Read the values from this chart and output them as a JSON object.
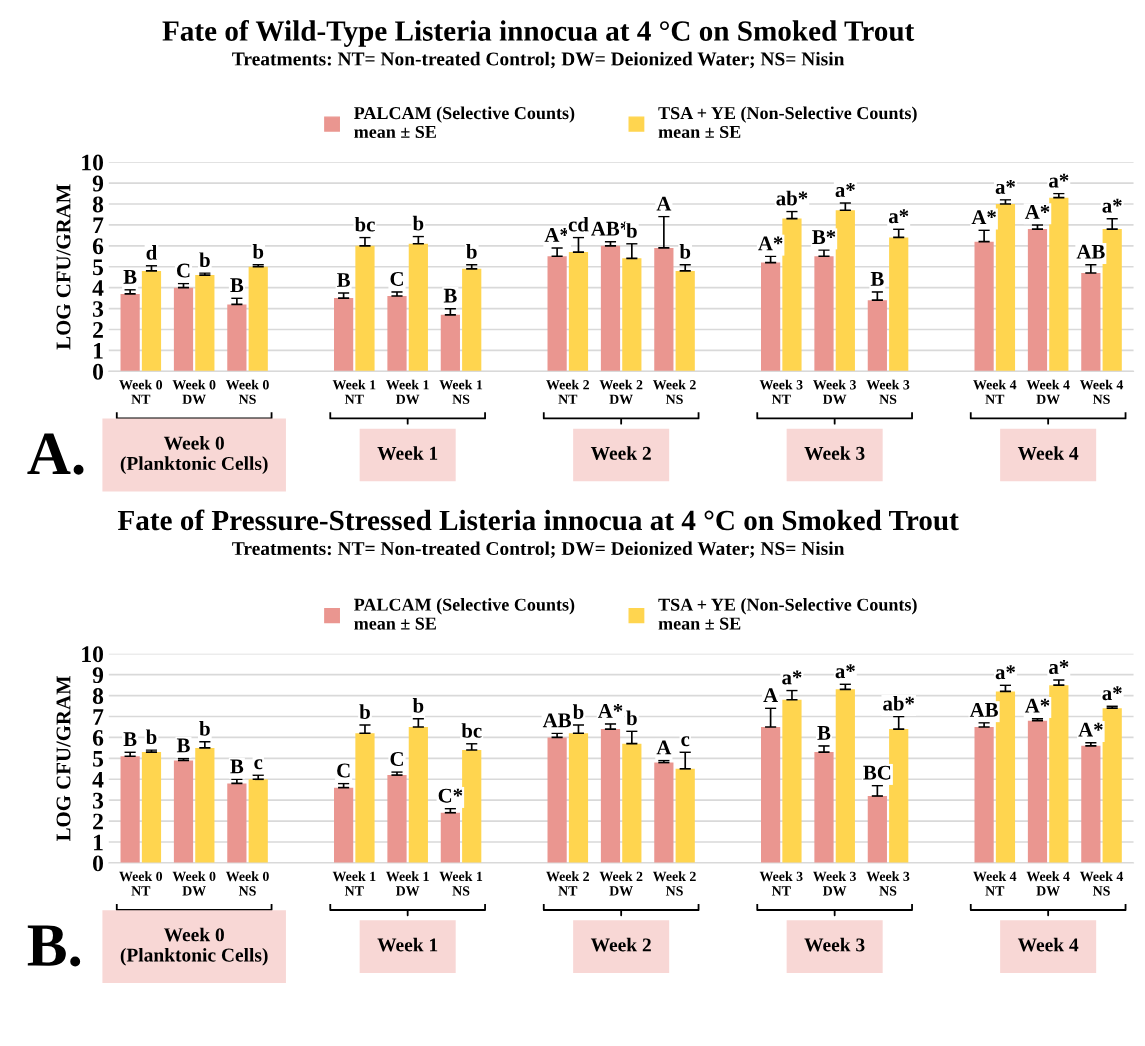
{
  "chart_data": [
    {
      "type": "bar",
      "title": "Fate of Wild-Type Listeria innocua at 4 °C on Smoked Trout",
      "subtitle": "Treatments: NT= Non-treated Control; DW= Deionized Water; NS= Nisin",
      "ylabel": "LOG CFU/GRAM",
      "categories": [
        "Week 0\nNT",
        "Week 0\nDW",
        "Week 0\nNS",
        null,
        "Week 1\nNT",
        "Week 1\nDW",
        "Week 1\nNS",
        null,
        "Week 2\nNT",
        "Week 2\nDW",
        "Week 2\nNS",
        null,
        "Week 3\nNT",
        "Week 3\nDW",
        "Week 3\nNS",
        null,
        "Week 4\nNT",
        "Week 4\nDW",
        "Week 4\nNS"
      ],
      "series": [
        {
          "name": "PALCAM (Selective Counts)\nmean ± SE",
          "color": "#ea9690",
          "values": [
            3.7,
            4.0,
            3.2,
            null,
            3.5,
            3.6,
            2.7,
            null,
            5.5,
            6.0,
            5.9,
            null,
            5.2,
            5.5,
            3.4,
            null,
            6.2,
            6.8,
            4.7
          ],
          "errors": [
            0.2,
            0.2,
            0.3,
            null,
            0.25,
            0.2,
            0.3,
            null,
            0.4,
            0.2,
            1.5,
            null,
            0.3,
            0.3,
            0.4,
            null,
            0.55,
            0.2,
            0.4
          ],
          "value_labels": [
            "B",
            "C",
            "B",
            null,
            "B",
            "C",
            "B",
            null,
            "A*",
            "AB*",
            "A",
            null,
            "A*",
            "B*",
            "B",
            null,
            "A*",
            "A*",
            "AB"
          ]
        },
        {
          "name": "TSA + YE (Non-Selective Counts)\nmean ± SE",
          "color": "#ffd54f",
          "values": [
            4.8,
            4.6,
            5.0,
            null,
            6.0,
            6.1,
            4.9,
            null,
            5.7,
            5.4,
            4.8,
            null,
            7.3,
            7.7,
            6.4,
            null,
            8.0,
            8.3,
            6.8
          ],
          "errors": [
            0.25,
            0.1,
            0.1,
            null,
            0.4,
            0.35,
            0.2,
            null,
            0.7,
            0.7,
            0.3,
            null,
            0.35,
            0.35,
            0.4,
            null,
            0.2,
            0.2,
            0.5
          ],
          "value_labels": [
            "d",
            "b",
            "b",
            null,
            "bc",
            "b",
            "b",
            null,
            "cd",
            "b",
            "b",
            null,
            "ab*",
            "a*",
            "a*",
            null,
            "a*",
            "a*",
            "a*"
          ]
        }
      ],
      "ylim": [
        0,
        10
      ],
      "yticks": [
        0,
        1,
        2,
        3,
        4,
        5,
        6,
        7,
        8,
        9,
        10
      ],
      "grid": "y",
      "legend": "top",
      "annotations": [
        "A.",
        "Week 0\n(Planktonic Cells)",
        "Week 1",
        "Week 2",
        "Week 3",
        "Week 4"
      ]
    },
    {
      "type": "bar",
      "title": "Fate of Pressure-Stressed Listeria innocua at 4 °C on Smoked Trout",
      "subtitle": "Treatments: NT= Non-treated Control; DW= Deionized Water; NS= Nisin",
      "ylabel": "LOG CFU/GRAM",
      "categories": [
        "Week 0\nNT",
        "Week 0\nDW",
        "Week 0\nNS",
        null,
        "Week 1\nNT",
        "Week 1\nDW",
        "Week 1\nNS",
        null,
        "Week 2\nNT",
        "Week 2\nDW",
        "Week 2\nNS",
        null,
        "Week 3\nNT",
        "Week 3\nDW",
        "Week 3\nNS",
        null,
        "Week 4\nNT",
        "Week 4\nDW",
        "Week 4\nNS"
      ],
      "series": [
        {
          "name": "PALCAM (Selective Counts)\nmean ± SE",
          "color": "#ea9690",
          "values": [
            5.1,
            4.9,
            3.8,
            null,
            3.6,
            4.2,
            2.4,
            null,
            6.0,
            6.4,
            4.8,
            null,
            6.5,
            5.3,
            3.2,
            null,
            6.5,
            6.8,
            5.6
          ],
          "errors": [
            0.2,
            0.1,
            0.2,
            null,
            0.2,
            0.15,
            0.2,
            null,
            0.2,
            0.25,
            0.1,
            null,
            0.9,
            0.3,
            0.5,
            null,
            0.2,
            0.1,
            0.15
          ],
          "value_labels": [
            "B",
            "B",
            "B",
            null,
            "C",
            "C",
            "C*",
            null,
            "AB",
            "A*",
            "A",
            null,
            "A",
            "B",
            "BC",
            null,
            "AB",
            "A*",
            "A*"
          ]
        },
        {
          "name": "TSA + YE (Non-Selective Counts)\nmean ± SE",
          "color": "#ffd54f",
          "values": [
            5.3,
            5.5,
            4.0,
            null,
            6.2,
            6.5,
            5.4,
            null,
            6.2,
            5.7,
            4.5,
            null,
            7.8,
            8.3,
            6.4,
            null,
            8.2,
            8.5,
            7.4
          ],
          "errors": [
            0.1,
            0.3,
            0.2,
            null,
            0.4,
            0.4,
            0.3,
            null,
            0.4,
            0.6,
            0.8,
            null,
            0.45,
            0.25,
            0.6,
            null,
            0.3,
            0.25,
            0.1
          ],
          "value_labels": [
            "b",
            "b",
            "c",
            null,
            "b",
            "b",
            "bc",
            null,
            "b",
            "b",
            "c",
            null,
            "a*",
            "a*",
            "ab*",
            null,
            "a*",
            "a*",
            "a*"
          ]
        }
      ],
      "ylim": [
        0,
        10
      ],
      "yticks": [
        0,
        1,
        2,
        3,
        4,
        5,
        6,
        7,
        8,
        9,
        10
      ],
      "grid": "y",
      "legend": "top",
      "annotations": [
        "B.",
        "Week 0\n(Planktonic Cells)",
        "Week 1",
        "Week 2",
        "Week 3",
        "Week 4"
      ]
    }
  ]
}
